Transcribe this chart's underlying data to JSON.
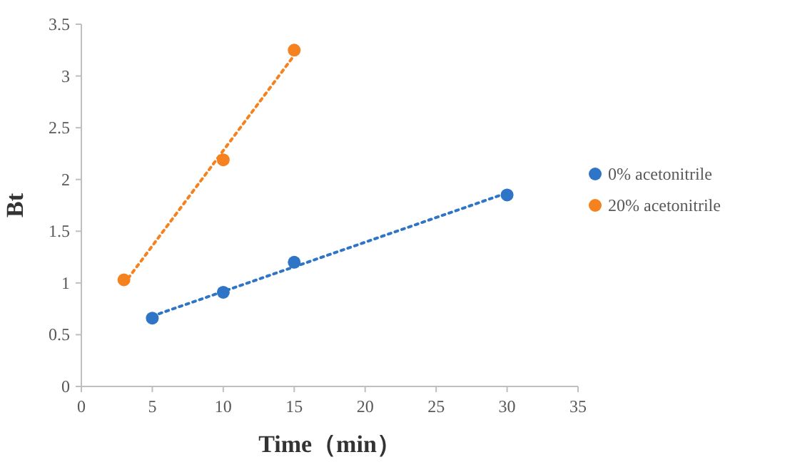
{
  "chart_data": {
    "type": "scatter",
    "xlabel": "Time（min）",
    "ylabel": "Bt",
    "xlim": [
      0,
      35
    ],
    "xticks": [
      0,
      5,
      10,
      15,
      20,
      25,
      30,
      35
    ],
    "ylim": [
      0,
      3.5
    ],
    "yticks": [
      0,
      0.5,
      1,
      1.5,
      2,
      2.5,
      3,
      3.5
    ],
    "grid": false,
    "legend": "right",
    "marker": "circle",
    "series": [
      {
        "name": "0% acetonitrile",
        "color": "#2f75c7",
        "x": [
          5,
          10,
          15,
          30
        ],
        "values": [
          0.66,
          0.91,
          1.2,
          1.85
        ]
      },
      {
        "name": "20% acetonitrile",
        "color": "#f5821f",
        "x": [
          3,
          10,
          15
        ],
        "values": [
          1.03,
          2.19,
          3.25
        ]
      },
      {
        "type": "line",
        "line_style": "dotted",
        "marker": "none",
        "color": "#2f75c7",
        "x": [
          5,
          30
        ],
        "values": [
          0.68,
          1.87
        ]
      },
      {
        "type": "line",
        "line_style": "dotted",
        "marker": "none",
        "color": "#f5821f",
        "x": [
          3,
          15
        ],
        "values": [
          0.99,
          3.2
        ]
      }
    ]
  }
}
